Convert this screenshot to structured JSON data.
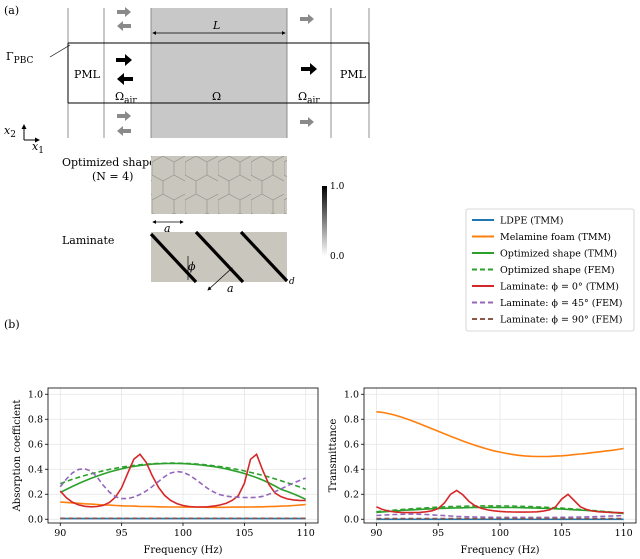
{
  "panel_a": {
    "label": "(a)",
    "length_label": "L",
    "gamma_label": "Γ",
    "gamma_sub": "PBC",
    "pml_left": "PML",
    "pml_right": "PML",
    "omega_air": "Ω",
    "omega_air_sub": "air",
    "omega_air_right": "Ω",
    "omega_air_right_sub": "air",
    "omega": "Ω",
    "axis_x2": "x",
    "axis_x2_sub": "2",
    "axis_x1": "x",
    "axis_x1_sub": "1",
    "optimized_title": "Optimized shape",
    "optimized_n": "(N = 4)",
    "dim_a1": "a",
    "laminate_title": "Laminate",
    "phi_label": "ϕ",
    "dim_a2": "a",
    "dim_d": "d",
    "colorbar_max": "1.0",
    "colorbar_min": "0.0"
  },
  "panel_b": {
    "label": "(b)"
  },
  "legend": [
    {
      "name": "LDPE (TMM)",
      "color": "#1f77b4",
      "dash": "solid"
    },
    {
      "name": "Melamine foam (TMM)",
      "color": "#ff7f0e",
      "dash": "solid"
    },
    {
      "name": "Optimized shape (TMM)",
      "color": "#2ca02c",
      "dash": "solid"
    },
    {
      "name": "Optimized shape (FEM)",
      "color": "#2ca02c",
      "dash": "dashed"
    },
    {
      "name": "Laminate: ϕ = 0° (TMM)",
      "color": "#d62728",
      "dash": "solid"
    },
    {
      "name": "Laminate: ϕ = 45° (FEM)",
      "color": "#9467bd",
      "dash": "dashed"
    },
    {
      "name": "Laminate: ϕ = 90° (FEM)",
      "color": "#8c564b",
      "dash": "dashed"
    }
  ],
  "chart_data": [
    {
      "type": "line",
      "xlabel": "Frequency (Hz)",
      "ylabel": "Absorption coefficient",
      "xlim": [
        89,
        111
      ],
      "ylim": [
        -0.03,
        1.05
      ],
      "xticks": [
        90,
        95,
        100,
        105,
        110
      ],
      "yticks": [
        0.0,
        0.2,
        0.4,
        0.6,
        0.8,
        1.0
      ],
      "grid": true,
      "x": [
        90,
        90.5,
        91,
        91.5,
        92,
        92.5,
        93,
        93.5,
        94,
        94.5,
        95,
        95.5,
        96,
        96.5,
        97,
        97.5,
        98,
        98.5,
        99,
        99.5,
        100,
        100.5,
        101,
        101.5,
        102,
        102.5,
        103,
        103.5,
        104,
        104.5,
        105,
        105.5,
        106,
        106.5,
        107,
        107.5,
        108,
        108.5,
        109,
        109.5,
        110
      ],
      "series": [
        {
          "name": "LDPE (TMM)",
          "values": [
            0.005,
            0.005,
            0.005,
            0.005,
            0.005,
            0.005,
            0.005,
            0.005,
            0.005,
            0.005,
            0.005,
            0.005,
            0.005,
            0.005,
            0.005,
            0.005,
            0.005,
            0.005,
            0.005,
            0.005,
            0.005,
            0.005,
            0.005,
            0.005,
            0.005,
            0.005,
            0.005,
            0.005,
            0.005,
            0.005,
            0.005,
            0.005,
            0.005,
            0.005,
            0.005,
            0.005,
            0.005,
            0.005,
            0.005,
            0.005,
            0.005
          ]
        },
        {
          "name": "Melamine foam (TMM)",
          "values": [
            0.137,
            0.135,
            0.131,
            0.128,
            0.124,
            0.121,
            0.118,
            0.115,
            0.113,
            0.11,
            0.108,
            0.106,
            0.105,
            0.103,
            0.102,
            0.101,
            0.1,
            0.099,
            0.098,
            0.098,
            0.097,
            0.097,
            0.097,
            0.097,
            0.096,
            0.096,
            0.096,
            0.096,
            0.097,
            0.097,
            0.097,
            0.098,
            0.099,
            0.1,
            0.101,
            0.103,
            0.105,
            0.107,
            0.11,
            0.113,
            0.118
          ]
        },
        {
          "name": "Optimized shape (TMM)",
          "values": [
            0.215,
            0.239,
            0.263,
            0.286,
            0.307,
            0.327,
            0.345,
            0.362,
            0.378,
            0.391,
            0.403,
            0.414,
            0.423,
            0.43,
            0.436,
            0.441,
            0.444,
            0.446,
            0.446,
            0.446,
            0.445,
            0.442,
            0.439,
            0.434,
            0.428,
            0.421,
            0.413,
            0.403,
            0.392,
            0.38,
            0.366,
            0.35,
            0.333,
            0.313,
            0.291,
            0.266,
            0.239,
            0.222,
            0.203,
            0.182,
            0.16
          ]
        },
        {
          "name": "Optimized shape (FEM)",
          "values": [
            0.285,
            0.303,
            0.32,
            0.336,
            0.35,
            0.364,
            0.376,
            0.388,
            0.399,
            0.408,
            0.417,
            0.424,
            0.431,
            0.436,
            0.441,
            0.444,
            0.447,
            0.448,
            0.449,
            0.449,
            0.448,
            0.446,
            0.443,
            0.439,
            0.434,
            0.428,
            0.422,
            0.414,
            0.406,
            0.397,
            0.387,
            0.375,
            0.364,
            0.351,
            0.338,
            0.323,
            0.308,
            0.292,
            0.276,
            0.258,
            0.24
          ]
        },
        {
          "name": "Laminate: ϕ = 0° (TMM)",
          "values": [
            0.225,
            0.172,
            0.136,
            0.115,
            0.104,
            0.1,
            0.102,
            0.112,
            0.134,
            0.177,
            0.252,
            0.369,
            0.481,
            0.52,
            0.455,
            0.348,
            0.256,
            0.191,
            0.15,
            0.125,
            0.11,
            0.102,
            0.098,
            0.098,
            0.1,
            0.105,
            0.114,
            0.127,
            0.15,
            0.188,
            0.288,
            0.48,
            0.52,
            0.39,
            0.28,
            0.21,
            0.18,
            0.163,
            0.155,
            0.151,
            0.15
          ]
        },
        {
          "name": "Laminate: ϕ = 45° (FEM)",
          "values": [
            0.26,
            0.322,
            0.372,
            0.399,
            0.404,
            0.385,
            0.338,
            0.272,
            0.217,
            0.18,
            0.165,
            0.165,
            0.178,
            0.198,
            0.226,
            0.262,
            0.302,
            0.341,
            0.37,
            0.382,
            0.376,
            0.354,
            0.321,
            0.284,
            0.248,
            0.218,
            0.197,
            0.185,
            0.179,
            0.176,
            0.174,
            0.173,
            0.175,
            0.184,
            0.2,
            0.221,
            0.244,
            0.267,
            0.29,
            0.31,
            0.33
          ]
        },
        {
          "name": "Laminate: ϕ = 90° (FEM)",
          "values": [
            0.008,
            0.008,
            0.008,
            0.008,
            0.008,
            0.008,
            0.008,
            0.008,
            0.008,
            0.008,
            0.008,
            0.008,
            0.008,
            0.008,
            0.008,
            0.008,
            0.008,
            0.008,
            0.008,
            0.008,
            0.008,
            0.008,
            0.008,
            0.008,
            0.008,
            0.008,
            0.008,
            0.008,
            0.008,
            0.008,
            0.008,
            0.008,
            0.008,
            0.008,
            0.008,
            0.008,
            0.008,
            0.008,
            0.008,
            0.008,
            0.008
          ]
        }
      ]
    },
    {
      "type": "line",
      "xlabel": "Frequency (Hz)",
      "ylabel": "Transmittance",
      "xlim": [
        89,
        111
      ],
      "ylim": [
        -0.03,
        1.05
      ],
      "xticks": [
        90,
        95,
        100,
        105,
        110
      ],
      "yticks": [
        0.0,
        0.2,
        0.4,
        0.6,
        0.8,
        1.0
      ],
      "grid": true,
      "x": [
        90,
        90.5,
        91,
        91.5,
        92,
        92.5,
        93,
        93.5,
        94,
        94.5,
        95,
        95.5,
        96,
        96.5,
        97,
        97.5,
        98,
        98.5,
        99,
        99.5,
        100,
        100.5,
        101,
        101.5,
        102,
        102.5,
        103,
        103.5,
        104,
        104.5,
        105,
        105.5,
        106,
        106.5,
        107,
        107.5,
        108,
        108.5,
        109,
        109.5,
        110
      ],
      "series": [
        {
          "name": "LDPE (TMM)",
          "values": [
            0.0,
            0.0,
            0.0,
            0.0,
            0.0,
            0.0,
            0.0,
            0.0,
            0.0,
            0.0,
            0.0,
            0.0,
            0.0,
            0.0,
            0.0,
            0.0,
            0.0,
            0.0,
            0.0,
            0.0,
            0.0,
            0.0,
            0.0,
            0.0,
            0.0,
            0.0,
            0.0,
            0.0,
            0.0,
            0.0,
            0.0,
            0.0,
            0.0,
            0.0,
            0.0,
            0.0,
            0.0,
            0.0,
            0.0,
            0.0,
            0.0
          ]
        },
        {
          "name": "Melamine foam (TMM)",
          "values": [
            0.86,
            0.855,
            0.845,
            0.833,
            0.818,
            0.801,
            0.783,
            0.764,
            0.744,
            0.724,
            0.704,
            0.684,
            0.664,
            0.645,
            0.626,
            0.608,
            0.591,
            0.576,
            0.561,
            0.548,
            0.537,
            0.527,
            0.519,
            0.512,
            0.507,
            0.504,
            0.502,
            0.502,
            0.503,
            0.505,
            0.508,
            0.512,
            0.517,
            0.522,
            0.527,
            0.533,
            0.539,
            0.545,
            0.551,
            0.558,
            0.566
          ]
        },
        {
          "name": "Optimized shape (TMM)",
          "values": [
            0.055,
            0.059,
            0.063,
            0.066,
            0.07,
            0.073,
            0.076,
            0.079,
            0.081,
            0.084,
            0.086,
            0.088,
            0.089,
            0.091,
            0.092,
            0.093,
            0.094,
            0.094,
            0.095,
            0.095,
            0.095,
            0.094,
            0.094,
            0.093,
            0.092,
            0.091,
            0.089,
            0.088,
            0.086,
            0.084,
            0.081,
            0.079,
            0.076,
            0.073,
            0.07,
            0.066,
            0.063,
            0.059,
            0.055,
            0.051,
            0.047
          ]
        },
        {
          "name": "Optimized shape (FEM)",
          "values": [
            0.06,
            0.065,
            0.069,
            0.073,
            0.077,
            0.081,
            0.085,
            0.088,
            0.091,
            0.094,
            0.097,
            0.099,
            0.101,
            0.103,
            0.104,
            0.105,
            0.106,
            0.107,
            0.107,
            0.107,
            0.107,
            0.106,
            0.105,
            0.104,
            0.103,
            0.101,
            0.099,
            0.097,
            0.094,
            0.092,
            0.089,
            0.085,
            0.082,
            0.078,
            0.074,
            0.07,
            0.066,
            0.061,
            0.057,
            0.052,
            0.05
          ]
        },
        {
          "name": "Laminate: ϕ = 0° (TMM)",
          "values": [
            0.1,
            0.078,
            0.065,
            0.058,
            0.055,
            0.053,
            0.053,
            0.055,
            0.06,
            0.068,
            0.085,
            0.13,
            0.2,
            0.23,
            0.195,
            0.142,
            0.107,
            0.087,
            0.075,
            0.068,
            0.063,
            0.06,
            0.058,
            0.057,
            0.057,
            0.058,
            0.06,
            0.065,
            0.075,
            0.1,
            0.162,
            0.2,
            0.15,
            0.1,
            0.078,
            0.066,
            0.06,
            0.057,
            0.055,
            0.053,
            0.052
          ]
        },
        {
          "name": "Laminate: ϕ = 45° (FEM)",
          "values": [
            0.03,
            0.033,
            0.036,
            0.038,
            0.04,
            0.041,
            0.041,
            0.04,
            0.038,
            0.035,
            0.032,
            0.029,
            0.026,
            0.023,
            0.021,
            0.019,
            0.018,
            0.017,
            0.016,
            0.016,
            0.015,
            0.015,
            0.015,
            0.015,
            0.015,
            0.015,
            0.015,
            0.015,
            0.015,
            0.015,
            0.016,
            0.016,
            0.017,
            0.018,
            0.019,
            0.02,
            0.022,
            0.024,
            0.026,
            0.028,
            0.03
          ]
        },
        {
          "name": "Laminate: ϕ = 90° (FEM)",
          "values": [
            0.005,
            0.005,
            0.005,
            0.005,
            0.005,
            0.005,
            0.005,
            0.005,
            0.005,
            0.005,
            0.005,
            0.005,
            0.005,
            0.005,
            0.005,
            0.005,
            0.005,
            0.005,
            0.005,
            0.005,
            0.005,
            0.005,
            0.005,
            0.005,
            0.005,
            0.005,
            0.005,
            0.005,
            0.005,
            0.005,
            0.005,
            0.005,
            0.005,
            0.005,
            0.005,
            0.005,
            0.005,
            0.005,
            0.005,
            0.005,
            0.005
          ]
        }
      ]
    }
  ]
}
